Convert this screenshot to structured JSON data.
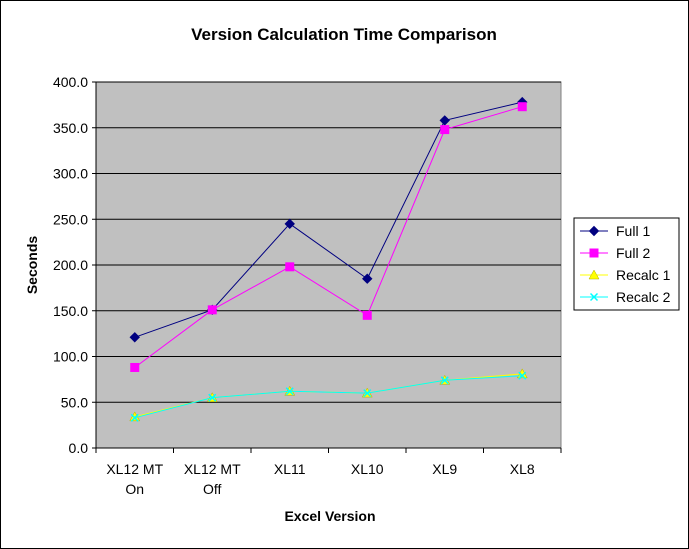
{
  "chart_data": {
    "type": "line",
    "title": "Version Calculation Time Comparison",
    "xlabel": "Excel Version",
    "ylabel": "Seconds",
    "categories": [
      [
        "XL12 MT",
        "On"
      ],
      [
        "XL12 MT",
        "Off"
      ],
      [
        "XL11"
      ],
      [
        "XL10"
      ],
      [
        "XL9"
      ],
      [
        "XL8"
      ]
    ],
    "ylim": [
      0,
      400
    ],
    "ytick_step": 50,
    "ytick_labels": [
      "0.0",
      "50.0",
      "100.0",
      "150.0",
      "200.0",
      "250.0",
      "300.0",
      "350.0",
      "400.0"
    ],
    "grid": true,
    "legend_position": "right",
    "plot_background": "#c0c0c0",
    "series": [
      {
        "name": "Full 1",
        "values": [
          121,
          151,
          245,
          185,
          358,
          378
        ],
        "color": "#000080",
        "marker": "diamond"
      },
      {
        "name": "Full 2",
        "values": [
          88,
          151,
          198,
          145,
          348,
          373
        ],
        "color": "#ff00ff",
        "marker": "square"
      },
      {
        "name": "Recalc 1",
        "values": [
          34,
          55,
          62,
          60,
          74,
          81
        ],
        "color": "#ffff00",
        "marker": "triangle"
      },
      {
        "name": "Recalc 2",
        "values": [
          33,
          55,
          62,
          60,
          74,
          79
        ],
        "color": "#00ffff",
        "marker": "x"
      }
    ]
  }
}
